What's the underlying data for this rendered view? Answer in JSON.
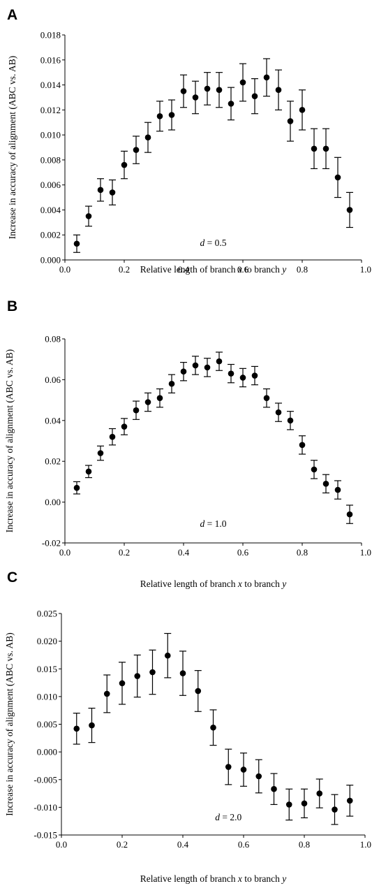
{
  "chart_data": [
    {
      "type": "scatter",
      "panel": "A",
      "xlabel": "Relative length of branch x to branch y",
      "ylabel": "Increase in accuracy of alignment (ABC vs. AB)",
      "annotation": "d = 0.5",
      "xlim": [
        0.0,
        1.0
      ],
      "ylim": [
        0.0,
        0.018
      ],
      "x_ticks": [
        "0.0",
        "0.2",
        "0.4",
        "0.6",
        "0.8",
        "1.0"
      ],
      "y_ticks": [
        "0.000",
        "0.002",
        "0.004",
        "0.006",
        "0.008",
        "0.010",
        "0.012",
        "0.014",
        "0.016",
        "0.018"
      ],
      "error_bars": true,
      "points": [
        {
          "x": 0.04,
          "y": 0.0013,
          "err": 0.0007
        },
        {
          "x": 0.08,
          "y": 0.0035,
          "err": 0.0008
        },
        {
          "x": 0.12,
          "y": 0.0056,
          "err": 0.0009
        },
        {
          "x": 0.16,
          "y": 0.0054,
          "err": 0.001
        },
        {
          "x": 0.2,
          "y": 0.0076,
          "err": 0.0011
        },
        {
          "x": 0.24,
          "y": 0.0088,
          "err": 0.0011
        },
        {
          "x": 0.28,
          "y": 0.0098,
          "err": 0.0012
        },
        {
          "x": 0.32,
          "y": 0.0115,
          "err": 0.0012
        },
        {
          "x": 0.36,
          "y": 0.0116,
          "err": 0.0012
        },
        {
          "x": 0.4,
          "y": 0.0135,
          "err": 0.0013
        },
        {
          "x": 0.44,
          "y": 0.013,
          "err": 0.0013
        },
        {
          "x": 0.48,
          "y": 0.0137,
          "err": 0.0013
        },
        {
          "x": 0.52,
          "y": 0.0136,
          "err": 0.0014
        },
        {
          "x": 0.56,
          "y": 0.0125,
          "err": 0.0013
        },
        {
          "x": 0.6,
          "y": 0.0142,
          "err": 0.0015
        },
        {
          "x": 0.64,
          "y": 0.0131,
          "err": 0.0014
        },
        {
          "x": 0.68,
          "y": 0.0146,
          "err": 0.0015
        },
        {
          "x": 0.72,
          "y": 0.0136,
          "err": 0.0016
        },
        {
          "x": 0.76,
          "y": 0.0111,
          "err": 0.0016
        },
        {
          "x": 0.8,
          "y": 0.012,
          "err": 0.0016
        },
        {
          "x": 0.84,
          "y": 0.0089,
          "err": 0.0016
        },
        {
          "x": 0.88,
          "y": 0.0089,
          "err": 0.0016
        },
        {
          "x": 0.92,
          "y": 0.0066,
          "err": 0.0016
        },
        {
          "x": 0.96,
          "y": 0.004,
          "err": 0.0014
        }
      ]
    },
    {
      "type": "scatter",
      "panel": "B",
      "xlabel": "Relative length of branch x to branch y",
      "ylabel": "Increase in accuracy of alignment (ABC vs. AB)",
      "annotation": "d = 1.0",
      "xlim": [
        0.0,
        1.0
      ],
      "ylim": [
        -0.02,
        0.08
      ],
      "x_ticks": [
        "0.0",
        "0.2",
        "0.4",
        "0.6",
        "0.8",
        "1.0"
      ],
      "y_ticks": [
        "-0.02",
        "0.00",
        "0.02",
        "0.04",
        "0.06",
        "0.08"
      ],
      "error_bars": true,
      "points": [
        {
          "x": 0.04,
          "y": 0.007,
          "err": 0.003
        },
        {
          "x": 0.08,
          "y": 0.015,
          "err": 0.003
        },
        {
          "x": 0.12,
          "y": 0.024,
          "err": 0.0035
        },
        {
          "x": 0.16,
          "y": 0.032,
          "err": 0.004
        },
        {
          "x": 0.2,
          "y": 0.037,
          "err": 0.004
        },
        {
          "x": 0.24,
          "y": 0.045,
          "err": 0.0045
        },
        {
          "x": 0.28,
          "y": 0.049,
          "err": 0.0045
        },
        {
          "x": 0.32,
          "y": 0.051,
          "err": 0.0045
        },
        {
          "x": 0.36,
          "y": 0.058,
          "err": 0.0045
        },
        {
          "x": 0.4,
          "y": 0.064,
          "err": 0.0045
        },
        {
          "x": 0.44,
          "y": 0.067,
          "err": 0.0045
        },
        {
          "x": 0.48,
          "y": 0.066,
          "err": 0.0045
        },
        {
          "x": 0.52,
          "y": 0.069,
          "err": 0.0045
        },
        {
          "x": 0.56,
          "y": 0.063,
          "err": 0.0045
        },
        {
          "x": 0.6,
          "y": 0.061,
          "err": 0.0045
        },
        {
          "x": 0.64,
          "y": 0.062,
          "err": 0.0045
        },
        {
          "x": 0.68,
          "y": 0.051,
          "err": 0.0045
        },
        {
          "x": 0.72,
          "y": 0.044,
          "err": 0.0045
        },
        {
          "x": 0.76,
          "y": 0.04,
          "err": 0.0045
        },
        {
          "x": 0.8,
          "y": 0.028,
          "err": 0.0045
        },
        {
          "x": 0.84,
          "y": 0.016,
          "err": 0.0045
        },
        {
          "x": 0.88,
          "y": 0.009,
          "err": 0.0045
        },
        {
          "x": 0.92,
          "y": 0.006,
          "err": 0.0045
        },
        {
          "x": 0.96,
          "y": -0.006,
          "err": 0.0045
        }
      ]
    },
    {
      "type": "scatter",
      "panel": "C",
      "xlabel": "Relative length of branch x to branch y",
      "ylabel": "Increase in accuracy of alignment (ABC vs. AB)",
      "annotation": "d = 2.0",
      "xlim": [
        0.0,
        1.0
      ],
      "ylim": [
        -0.015,
        0.025
      ],
      "x_ticks": [
        "0.0",
        "0.2",
        "0.4",
        "0.6",
        "0.8",
        "1.0"
      ],
      "y_ticks": [
        "-0.015",
        "-0.010",
        "-0.005",
        "0.000",
        "0.005",
        "0.010",
        "0.015",
        "0.020",
        "0.025"
      ],
      "error_bars": true,
      "points": [
        {
          "x": 0.05,
          "y": 0.0042,
          "err": 0.0028
        },
        {
          "x": 0.1,
          "y": 0.0048,
          "err": 0.0031
        },
        {
          "x": 0.15,
          "y": 0.0105,
          "err": 0.0034
        },
        {
          "x": 0.2,
          "y": 0.0124,
          "err": 0.0038
        },
        {
          "x": 0.25,
          "y": 0.0137,
          "err": 0.0038
        },
        {
          "x": 0.3,
          "y": 0.0144,
          "err": 0.004
        },
        {
          "x": 0.35,
          "y": 0.0174,
          "err": 0.004
        },
        {
          "x": 0.4,
          "y": 0.0142,
          "err": 0.004
        },
        {
          "x": 0.45,
          "y": 0.011,
          "err": 0.0037
        },
        {
          "x": 0.5,
          "y": 0.0044,
          "err": 0.0032
        },
        {
          "x": 0.55,
          "y": -0.0027,
          "err": 0.0032
        },
        {
          "x": 0.6,
          "y": -0.0032,
          "err": 0.003
        },
        {
          "x": 0.65,
          "y": -0.0044,
          "err": 0.003
        },
        {
          "x": 0.7,
          "y": -0.0067,
          "err": 0.0028
        },
        {
          "x": 0.75,
          "y": -0.0095,
          "err": 0.0028
        },
        {
          "x": 0.8,
          "y": -0.0093,
          "err": 0.0026
        },
        {
          "x": 0.85,
          "y": -0.0075,
          "err": 0.0026
        },
        {
          "x": 0.9,
          "y": -0.0104,
          "err": 0.0027
        },
        {
          "x": 0.95,
          "y": -0.0088,
          "err": 0.0028
        }
      ]
    }
  ]
}
